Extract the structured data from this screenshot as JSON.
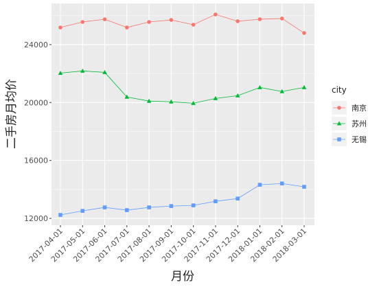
{
  "chart_data": {
    "type": "line",
    "x_label": "月份",
    "y_label": "二手房月均价",
    "legend_title": "city",
    "legend_position": "right",
    "grid": true,
    "categories": [
      "2017-04-01",
      "2017-05-01",
      "2017-06-01",
      "2017-07-01",
      "2017-08-01",
      "2017-09-01",
      "2017-10-01",
      "2017-11-01",
      "2017-12-01",
      "2018-01-01",
      "2018-02-01",
      "2018-03-01"
    ],
    "series": [
      {
        "name": "南京",
        "color": "#F8766D",
        "marker": "circle",
        "values": [
          25180,
          25560,
          25750,
          25180,
          25560,
          25700,
          25370,
          26080,
          25610,
          25750,
          25800,
          24800
        ]
      },
      {
        "name": "苏州",
        "color": "#00BA38",
        "marker": "triangle",
        "values": [
          22030,
          22180,
          22080,
          20380,
          20100,
          20050,
          19950,
          20280,
          20470,
          21040,
          20760,
          21040
        ]
      },
      {
        "name": "无锡",
        "color": "#619CFF",
        "marker": "square",
        "values": [
          12240,
          12520,
          12760,
          12570,
          12760,
          12850,
          12900,
          13180,
          13370,
          14320,
          14410,
          14180
        ]
      }
    ],
    "ylim": [
      11530,
      26840
    ],
    "yticks": [
      12000,
      16000,
      20000,
      24000
    ]
  }
}
